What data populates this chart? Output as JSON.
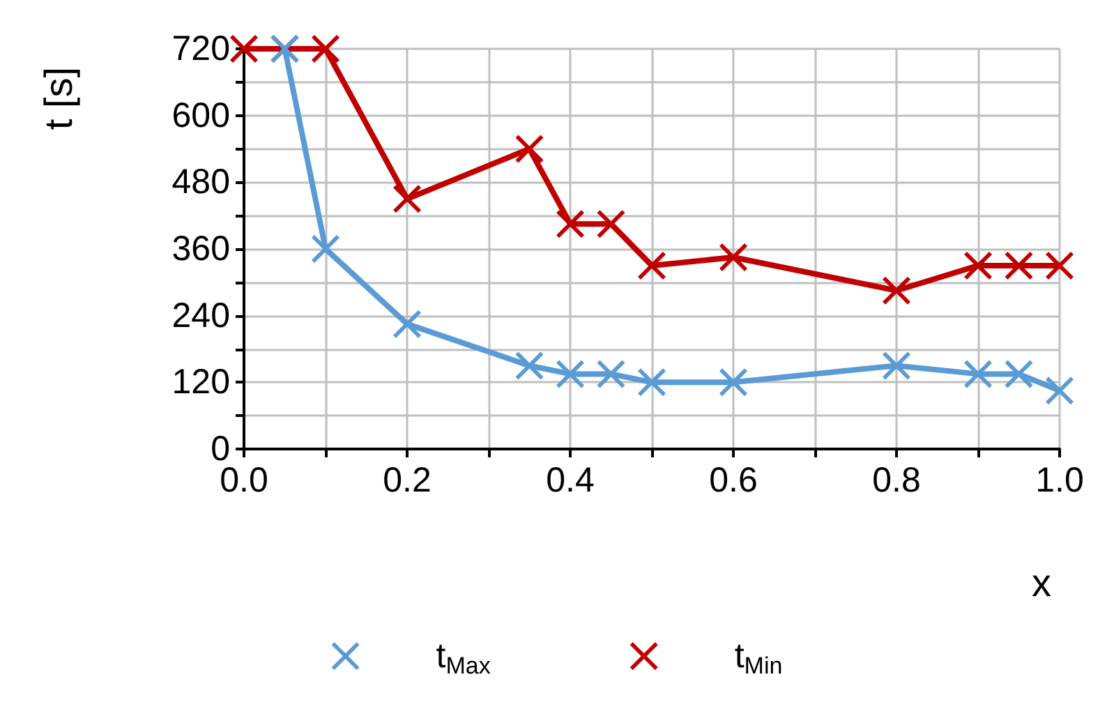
{
  "chart_data": {
    "type": "line",
    "xlabel": "x",
    "ylabel": "t [s]",
    "xlim": [
      0,
      1
    ],
    "ylim": [
      0,
      720
    ],
    "xticks": [
      {
        "value": 0,
        "label": "0.0"
      },
      {
        "value": 0.1,
        "label": null
      },
      {
        "value": 0.2,
        "label": "0.2"
      },
      {
        "value": 0.3,
        "label": null
      },
      {
        "value": 0.4,
        "label": "0.4"
      },
      {
        "value": 0.5,
        "label": null
      },
      {
        "value": 0.6,
        "label": "0.6"
      },
      {
        "value": 0.7,
        "label": null
      },
      {
        "value": 0.8,
        "label": "0.8"
      },
      {
        "value": 0.9,
        "label": null
      },
      {
        "value": 1,
        "label": "1.0"
      }
    ],
    "yticks": [
      0,
      {
        "value": 60,
        "label": null
      },
      120,
      {
        "value": 180,
        "label": null
      },
      240,
      {
        "value": 300,
        "label": null
      },
      360,
      {
        "value": 420,
        "label": null
      },
      480,
      {
        "value": 540,
        "label": null
      },
      600,
      {
        "value": 660,
        "label": null
      },
      720
    ],
    "grid": true,
    "legend": "bottom",
    "marker": "cross",
    "line_style": "solid",
    "series": [
      {
        "name": "t$_{Max}$",
        "color": "#5b9bd5",
        "x": [
          0.05,
          0.1,
          0.2,
          0.35,
          0.4,
          0.45,
          0.5,
          0.6,
          0.8,
          0.9,
          0.95,
          1.0
        ],
        "values": [
          720,
          360,
          225,
          150,
          135,
          135,
          120,
          120,
          150,
          135,
          135,
          105
        ]
      },
      {
        "name": "t$_{Min}$",
        "color": "#c00000",
        "x": [
          0,
          0.05,
          0.1,
          0.2,
          0.35,
          0.4,
          0.45,
          0.5,
          0.6,
          0.8,
          0.9,
          0.95,
          1.0
        ],
        "values": [
          720,
          720,
          720,
          450,
          540,
          405,
          405,
          330,
          345,
          285,
          330,
          330,
          330
        ]
      }
    ]
  }
}
